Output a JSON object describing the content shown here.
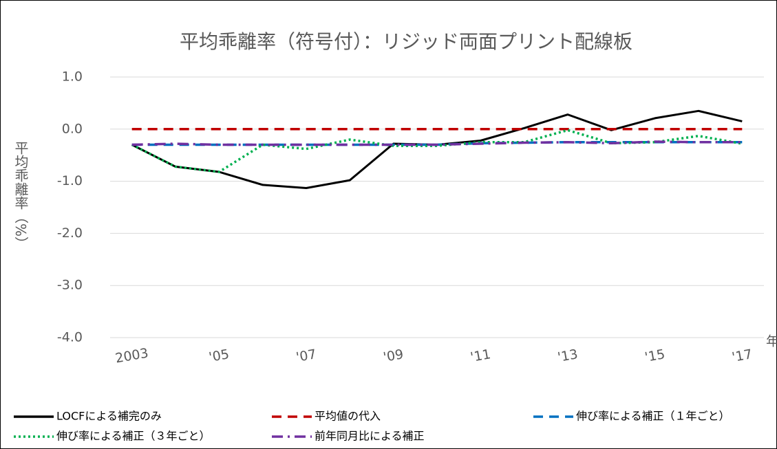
{
  "chart_data": {
    "type": "line",
    "title": "平均乖離率（符号付）：リジッド両面プリント配線板",
    "y_label": "平均乖離率（%）",
    "x_unit": "年",
    "categories": [
      "2003",
      null,
      "'05",
      null,
      "'07",
      null,
      "'09",
      null,
      "'11",
      null,
      "'13",
      null,
      "'15",
      null,
      "'17"
    ],
    "ylim": [
      -4,
      1
    ],
    "yticks": [
      {
        "value": 1,
        "label": "1.0"
      },
      {
        "value": 0,
        "label": "0.0"
      },
      {
        "value": -1,
        "label": "-1.0"
      },
      {
        "value": -2,
        "label": "-2.0"
      },
      {
        "value": -3,
        "label": "-3.0"
      },
      {
        "value": -4,
        "label": "-4.0"
      }
    ],
    "grid": true,
    "legend": "bottom",
    "series": [
      {
        "name": "LOCFによる補完のみ",
        "color": "#000000",
        "style": "solid",
        "values": [
          -0.3,
          -0.72,
          -0.82,
          -1.07,
          -1.13,
          -0.98,
          -0.28,
          -0.3,
          -0.22,
          0.02,
          0.28,
          -0.02,
          0.21,
          0.35,
          0.15
        ]
      },
      {
        "name": "平均値の代入",
        "color": "#c00000",
        "style": "dashed",
        "values": [
          0,
          0,
          0,
          0,
          0,
          0,
          0,
          0,
          0,
          0,
          0,
          0,
          0,
          0,
          0
        ]
      },
      {
        "name": "伸び率による補正（１年ごと）",
        "color": "#0070c0",
        "style": "dashed",
        "values": [
          -0.3,
          -0.3,
          -0.3,
          -0.3,
          -0.3,
          -0.3,
          -0.3,
          -0.3,
          -0.27,
          -0.26,
          -0.25,
          -0.25,
          -0.25,
          -0.25,
          -0.25
        ]
      },
      {
        "name": "伸び率による補正（３年ごと）",
        "color": "#00b050",
        "style": "dotted",
        "values": [
          -0.3,
          -0.72,
          -0.82,
          -0.3,
          -0.38,
          -0.2,
          -0.32,
          -0.32,
          -0.25,
          -0.25,
          -0.02,
          -0.27,
          -0.25,
          -0.13,
          -0.28
        ]
      },
      {
        "name": "前年同月比による補正",
        "color": "#7030a0",
        "style": "dashdot",
        "values": [
          -0.3,
          -0.28,
          -0.3,
          -0.3,
          -0.3,
          -0.3,
          -0.3,
          -0.3,
          -0.28,
          -0.26,
          -0.25,
          -0.27,
          -0.24,
          -0.25,
          -0.25
        ]
      }
    ]
  }
}
